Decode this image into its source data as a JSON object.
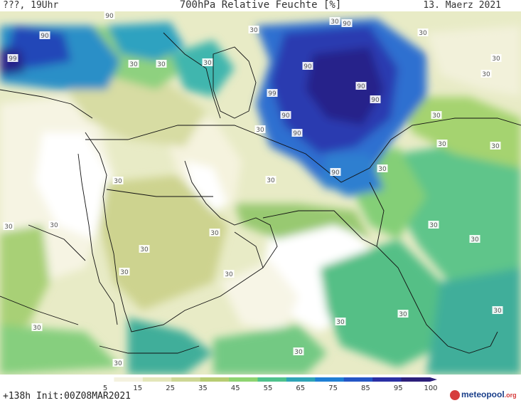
{
  "header": {
    "left": "???, 19Uhr",
    "title": "700hPa Relative Feuchte [%]",
    "right": "13. Maerz 2021"
  },
  "footer": {
    "run_info": "+138h Init:00Z08MAR2021",
    "logo_name": "meteopool",
    "logo_tld": ".org",
    "logo_icon": "meteopool-logo-icon"
  },
  "legend": {
    "ticks": [
      "5",
      "15",
      "25",
      "35",
      "45",
      "55",
      "65",
      "75",
      "85",
      "95",
      "100"
    ],
    "colors": [
      "#ffffff",
      "#f4f2df",
      "#e3e6b9",
      "#cdd795",
      "#b7cc72",
      "#8ed470",
      "#4fc28c",
      "#2ea4b6",
      "#1f7fd4",
      "#2456c6",
      "#2a2fa4",
      "#2c1f7a"
    ]
  },
  "map": {
    "contour_labels": [
      "90",
      "90",
      "99",
      "30",
      "30",
      "30",
      "30",
      "90",
      "30",
      "30",
      "30",
      "30",
      "90",
      "99",
      "90",
      "90",
      "30",
      "90",
      "90",
      "30",
      "30",
      "30",
      "30",
      "90",
      "30",
      "30",
      "30",
      "30",
      "30",
      "30",
      "30",
      "30",
      "30",
      "30",
      "30",
      "30",
      "30",
      "30",
      "30",
      "30"
    ]
  }
}
